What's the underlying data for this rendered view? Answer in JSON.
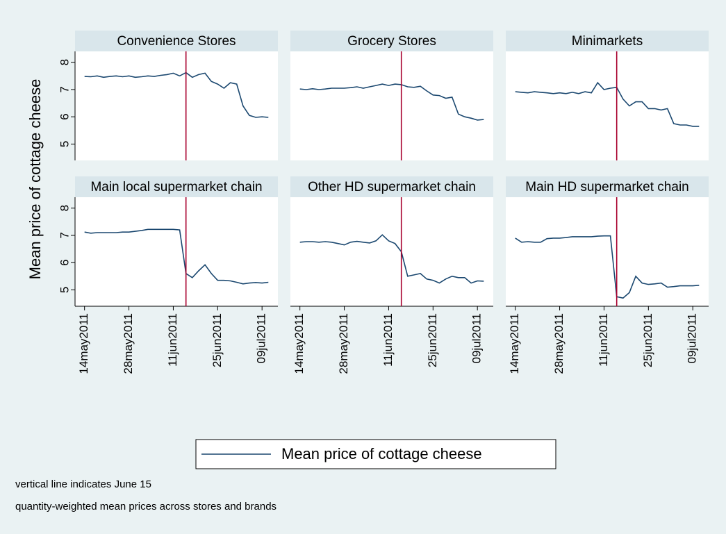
{
  "figure": {
    "ylabel": "Mean price of cottage cheese",
    "reference_date": "2011-06-15",
    "notes": [
      "vertical line indicates June 15",
      "quantity-weighted mean prices across stores and brands"
    ]
  },
  "chart_data": [
    {
      "type": "line",
      "title": "Convenience Stores",
      "x": [
        "2011-05-14",
        "2011-05-16",
        "2011-05-18",
        "2011-05-20",
        "2011-05-22",
        "2011-05-24",
        "2011-05-26",
        "2011-05-28",
        "2011-05-30",
        "2011-06-01",
        "2011-06-03",
        "2011-06-05",
        "2011-06-07",
        "2011-06-09",
        "2011-06-11",
        "2011-06-13",
        "2011-06-15",
        "2011-06-17",
        "2011-06-19",
        "2011-06-21",
        "2011-06-23",
        "2011-06-25",
        "2011-06-27",
        "2011-06-29",
        "2011-07-01",
        "2011-07-03",
        "2011-07-05",
        "2011-07-07",
        "2011-07-09",
        "2011-07-11"
      ],
      "series": [
        {
          "name": "Mean price of cottage cheese",
          "color": "#1a476f",
          "values": [
            7.48,
            7.47,
            7.5,
            7.45,
            7.48,
            7.5,
            7.47,
            7.5,
            7.45,
            7.47,
            7.5,
            7.48,
            7.52,
            7.55,
            7.6,
            7.5,
            7.62,
            7.45,
            7.55,
            7.6,
            7.3,
            7.2,
            7.05,
            7.25,
            7.2,
            6.4,
            6.05,
            5.98,
            6.0,
            5.98
          ]
        }
      ],
      "xlim": [
        "2011-05-11",
        "2011-07-14"
      ],
      "ylim": [
        4.4,
        8.4
      ],
      "yticks": [
        5,
        6,
        7,
        8
      ],
      "xticks": [
        {
          "value": "2011-05-14",
          "label": "14may2011"
        },
        {
          "value": "2011-05-28",
          "label": "28may2011"
        },
        {
          "value": "2011-06-11",
          "label": "11jun2011"
        },
        {
          "value": "2011-06-25",
          "label": "25jun2011"
        },
        {
          "value": "2011-07-09",
          "label": "09jul2011"
        }
      ]
    },
    {
      "type": "line",
      "title": "Grocery Stores",
      "x": [
        "2011-05-14",
        "2011-05-16",
        "2011-05-18",
        "2011-05-20",
        "2011-05-22",
        "2011-05-24",
        "2011-05-26",
        "2011-05-28",
        "2011-05-30",
        "2011-06-01",
        "2011-06-03",
        "2011-06-05",
        "2011-06-07",
        "2011-06-09",
        "2011-06-11",
        "2011-06-13",
        "2011-06-15",
        "2011-06-17",
        "2011-06-19",
        "2011-06-21",
        "2011-06-23",
        "2011-06-25",
        "2011-06-27",
        "2011-06-29",
        "2011-07-01",
        "2011-07-03",
        "2011-07-05",
        "2011-07-07",
        "2011-07-09",
        "2011-07-11"
      ],
      "series": [
        {
          "name": "Mean price of cottage cheese",
          "color": "#1a476f",
          "values": [
            7.02,
            7.0,
            7.03,
            7.0,
            7.02,
            7.05,
            7.05,
            7.05,
            7.07,
            7.1,
            7.05,
            7.1,
            7.15,
            7.2,
            7.15,
            7.2,
            7.18,
            7.1,
            7.08,
            7.12,
            6.95,
            6.8,
            6.78,
            6.68,
            6.72,
            6.1,
            6.0,
            5.95,
            5.88,
            5.9
          ]
        }
      ],
      "xlim": [
        "2011-05-11",
        "2011-07-14"
      ],
      "ylim": [
        4.4,
        8.4
      ],
      "yticks": [
        5,
        6,
        7,
        8
      ],
      "xticks": [
        {
          "value": "2011-05-14",
          "label": "14may2011"
        },
        {
          "value": "2011-05-28",
          "label": "28may2011"
        },
        {
          "value": "2011-06-11",
          "label": "11jun2011"
        },
        {
          "value": "2011-06-25",
          "label": "25jun2011"
        },
        {
          "value": "2011-07-09",
          "label": "09jul2011"
        }
      ]
    },
    {
      "type": "line",
      "title": "Minimarkets",
      "x": [
        "2011-05-14",
        "2011-05-16",
        "2011-05-18",
        "2011-05-20",
        "2011-05-22",
        "2011-05-24",
        "2011-05-26",
        "2011-05-28",
        "2011-05-30",
        "2011-06-01",
        "2011-06-03",
        "2011-06-05",
        "2011-06-07",
        "2011-06-09",
        "2011-06-11",
        "2011-06-13",
        "2011-06-15",
        "2011-06-17",
        "2011-06-19",
        "2011-06-21",
        "2011-06-23",
        "2011-06-25",
        "2011-06-27",
        "2011-06-29",
        "2011-07-01",
        "2011-07-03",
        "2011-07-05",
        "2011-07-07",
        "2011-07-09",
        "2011-07-11"
      ],
      "series": [
        {
          "name": "Mean price of cottage cheese",
          "color": "#1a476f",
          "values": [
            6.92,
            6.9,
            6.88,
            6.92,
            6.9,
            6.88,
            6.85,
            6.88,
            6.85,
            6.9,
            6.85,
            6.92,
            6.88,
            7.25,
            7.0,
            7.05,
            7.08,
            6.65,
            6.4,
            6.55,
            6.55,
            6.3,
            6.3,
            6.25,
            6.3,
            5.75,
            5.7,
            5.7,
            5.65,
            5.65
          ]
        }
      ],
      "xlim": [
        "2011-05-11",
        "2011-07-14"
      ],
      "ylim": [
        4.4,
        8.4
      ],
      "yticks": [
        5,
        6,
        7,
        8
      ],
      "xticks": [
        {
          "value": "2011-05-14",
          "label": "14may2011"
        },
        {
          "value": "2011-05-28",
          "label": "28may2011"
        },
        {
          "value": "2011-06-11",
          "label": "11jun2011"
        },
        {
          "value": "2011-06-25",
          "label": "25jun2011"
        },
        {
          "value": "2011-07-09",
          "label": "09jul2011"
        }
      ]
    },
    {
      "type": "line",
      "title": "Main local supermarket chain",
      "x": [
        "2011-05-14",
        "2011-05-16",
        "2011-05-18",
        "2011-05-20",
        "2011-05-22",
        "2011-05-24",
        "2011-05-26",
        "2011-05-28",
        "2011-05-30",
        "2011-06-01",
        "2011-06-03",
        "2011-06-05",
        "2011-06-07",
        "2011-06-09",
        "2011-06-11",
        "2011-06-13",
        "2011-06-15",
        "2011-06-17",
        "2011-06-19",
        "2011-06-21",
        "2011-06-23",
        "2011-06-25",
        "2011-06-27",
        "2011-06-29",
        "2011-07-01",
        "2011-07-03",
        "2011-07-05",
        "2011-07-07",
        "2011-07-09",
        "2011-07-11"
      ],
      "series": [
        {
          "name": "Mean price of cottage cheese",
          "color": "#1a476f",
          "values": [
            7.12,
            7.08,
            7.1,
            7.1,
            7.1,
            7.1,
            7.12,
            7.12,
            7.15,
            7.18,
            7.22,
            7.22,
            7.22,
            7.22,
            7.22,
            7.2,
            5.6,
            5.45,
            5.7,
            5.92,
            5.6,
            5.35,
            5.35,
            5.33,
            5.28,
            5.22,
            5.25,
            5.27,
            5.25,
            5.28
          ]
        }
      ],
      "xlim": [
        "2011-05-11",
        "2011-07-14"
      ],
      "ylim": [
        4.4,
        8.4
      ],
      "yticks": [
        5,
        6,
        7,
        8
      ],
      "xticks": [
        {
          "value": "2011-05-14",
          "label": "14may2011"
        },
        {
          "value": "2011-05-28",
          "label": "28may2011"
        },
        {
          "value": "2011-06-11",
          "label": "11jun2011"
        },
        {
          "value": "2011-06-25",
          "label": "25jun2011"
        },
        {
          "value": "2011-07-09",
          "label": "09jul2011"
        }
      ]
    },
    {
      "type": "line",
      "title": "Other HD supermarket chain",
      "x": [
        "2011-05-14",
        "2011-05-16",
        "2011-05-18",
        "2011-05-20",
        "2011-05-22",
        "2011-05-24",
        "2011-05-26",
        "2011-05-28",
        "2011-05-30",
        "2011-06-01",
        "2011-06-03",
        "2011-06-05",
        "2011-06-07",
        "2011-06-09",
        "2011-06-11",
        "2011-06-13",
        "2011-06-15",
        "2011-06-17",
        "2011-06-19",
        "2011-06-21",
        "2011-06-23",
        "2011-06-25",
        "2011-06-27",
        "2011-06-29",
        "2011-07-01",
        "2011-07-03",
        "2011-07-05",
        "2011-07-07",
        "2011-07-09",
        "2011-07-11"
      ],
      "series": [
        {
          "name": "Mean price of cottage cheese",
          "color": "#1a476f",
          "values": [
            6.75,
            6.77,
            6.77,
            6.75,
            6.77,
            6.75,
            6.7,
            6.65,
            6.75,
            6.78,
            6.75,
            6.72,
            6.8,
            7.02,
            6.8,
            6.7,
            6.4,
            5.5,
            5.55,
            5.6,
            5.4,
            5.35,
            5.25,
            5.4,
            5.5,
            5.45,
            5.45,
            5.25,
            5.33,
            5.32
          ]
        }
      ],
      "xlim": [
        "2011-05-11",
        "2011-07-14"
      ],
      "ylim": [
        4.4,
        8.4
      ],
      "yticks": [
        5,
        6,
        7,
        8
      ],
      "xticks": [
        {
          "value": "2011-05-14",
          "label": "14may2011"
        },
        {
          "value": "2011-05-28",
          "label": "28may2011"
        },
        {
          "value": "2011-06-11",
          "label": "11jun2011"
        },
        {
          "value": "2011-06-25",
          "label": "25jun2011"
        },
        {
          "value": "2011-07-09",
          "label": "09jul2011"
        }
      ]
    },
    {
      "type": "line",
      "title": "Main HD supermarket chain",
      "x": [
        "2011-05-14",
        "2011-05-16",
        "2011-05-18",
        "2011-05-20",
        "2011-05-22",
        "2011-05-24",
        "2011-05-26",
        "2011-05-28",
        "2011-05-30",
        "2011-06-01",
        "2011-06-03",
        "2011-06-05",
        "2011-06-07",
        "2011-06-09",
        "2011-06-11",
        "2011-06-13",
        "2011-06-15",
        "2011-06-17",
        "2011-06-19",
        "2011-06-21",
        "2011-06-23",
        "2011-06-25",
        "2011-06-27",
        "2011-06-29",
        "2011-07-01",
        "2011-07-03",
        "2011-07-05",
        "2011-07-07",
        "2011-07-09",
        "2011-07-11"
      ],
      "series": [
        {
          "name": "Mean price of cottage cheese",
          "color": "#1a476f",
          "values": [
            6.9,
            6.75,
            6.77,
            6.75,
            6.75,
            6.88,
            6.9,
            6.9,
            6.92,
            6.95,
            6.95,
            6.95,
            6.95,
            6.97,
            6.98,
            6.98,
            4.75,
            4.7,
            4.9,
            5.5,
            5.25,
            5.2,
            5.22,
            5.25,
            5.1,
            5.12,
            5.15,
            5.15,
            5.15,
            5.17
          ]
        }
      ],
      "xlim": [
        "2011-05-11",
        "2011-07-14"
      ],
      "ylim": [
        4.4,
        8.4
      ],
      "yticks": [
        5,
        6,
        7,
        8
      ],
      "xticks": [
        {
          "value": "2011-05-14",
          "label": "14may2011"
        },
        {
          "value": "2011-05-28",
          "label": "28may2011"
        },
        {
          "value": "2011-06-11",
          "label": "11jun2011"
        },
        {
          "value": "2011-06-25",
          "label": "25jun2011"
        },
        {
          "value": "2011-07-09",
          "label": "09jul2011"
        }
      ]
    }
  ]
}
